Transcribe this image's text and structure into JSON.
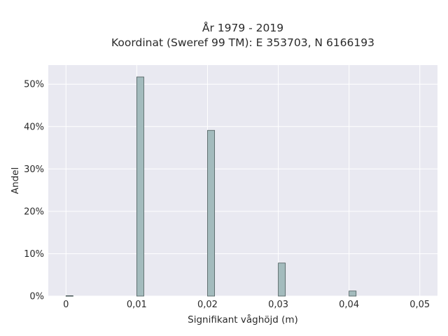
{
  "chart_data": {
    "type": "bar",
    "title_line1": "År 1979 - 2019",
    "title_line2": "Koordinat (Sweref 99 TM): E 353703, N 6166193",
    "xlabel": "Signifikant våghöjd (m)",
    "ylabel": "Andel",
    "x": [
      0,
      0.01,
      0.02,
      0.03,
      0.04
    ],
    "values": [
      0.1,
      51.7,
      39.1,
      7.8,
      1.2
    ],
    "xlim": [
      -0.0025,
      0.0525
    ],
    "ylim": [
      0,
      54.5
    ],
    "x_ticks": [
      0,
      0.01,
      0.02,
      0.03,
      0.04,
      0.05
    ],
    "x_tick_labels": [
      "0",
      "0,01",
      "0,02",
      "0,03",
      "0,04",
      "0,05"
    ],
    "y_ticks": [
      0,
      10,
      20,
      30,
      40,
      50
    ],
    "y_tick_labels": [
      "0%",
      "10%",
      "20%",
      "30%",
      "40%",
      "50%"
    ],
    "bar_width": 0.001,
    "grid": true,
    "colors": {
      "plot_background": "#e9e9f1",
      "bar_fill": "#a3bbbd",
      "bar_edge": "#4a5a5a",
      "grid": "#ffffff"
    }
  }
}
